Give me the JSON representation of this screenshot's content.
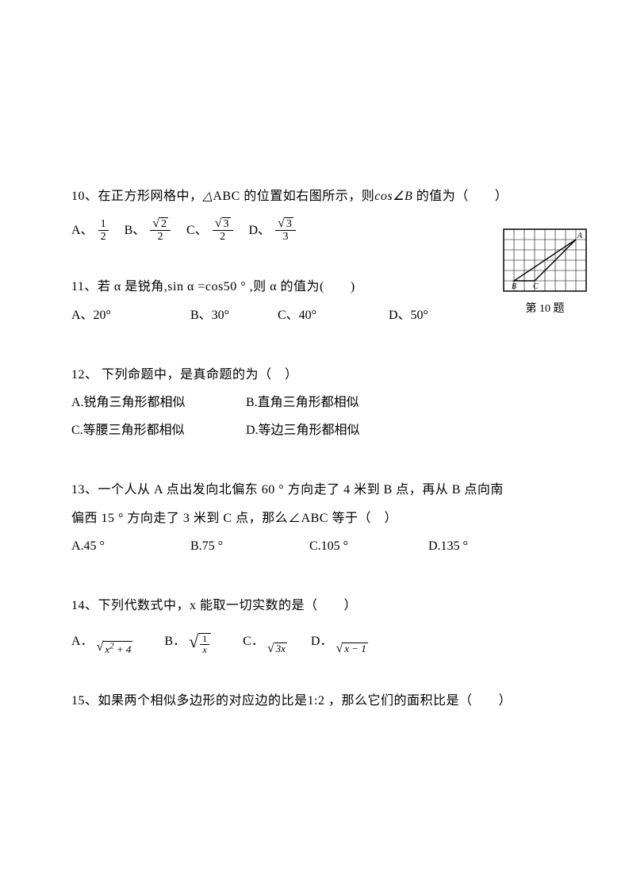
{
  "q10": {
    "number": "10、",
    "text_before": "在正方形网格中，",
    "triangle": "△ABC",
    "text_mid": " 的位置如右图所示，则",
    "cos": "cos∠B",
    "text_after": " 的值为（　　）",
    "opts": {
      "A": "A、",
      "B": "B、",
      "C": "C、",
      "D": "D、"
    },
    "fracs": {
      "A": {
        "num": "1",
        "den": "2"
      },
      "B": {
        "num_sqrt": "2",
        "den": "2"
      },
      "C": {
        "num_sqrt": "3",
        "den": "2"
      },
      "D": {
        "num_sqrt": "3",
        "den": "3"
      }
    },
    "figure_caption": "第 10 题"
  },
  "q11": {
    "number": "11、",
    "text": "若 α 是锐角,sin α =cos50 ° ,则 α 的值为(　　)",
    "A": "A、20°",
    "B": "B、30°",
    "C": "C、40°",
    "D": "D、50°"
  },
  "q12": {
    "number": "12、",
    "text": " 下列命题中，是真命题的为（　）",
    "A": "A.锐角三角形都相似",
    "B": "B.直角三角形都相似",
    "C": "C.等腰三角形都相似",
    "D": "D.等边三角形都相似"
  },
  "q13": {
    "number": "13、",
    "line1": "一个人从 A 点出发向北偏东 60 ° 方向走了 4 米到 B 点，再从 B 点向南",
    "line2": "偏西 15 ° 方向走了 3 米到 C 点，那么∠ABC 等于（　）",
    "A": "A.45 °",
    "B": "B.75 °",
    "C": "C.105 °",
    "D": "D.135 °"
  },
  "q14": {
    "number": "14、",
    "text": "下列代数式中，x 能取一切实数的是（　　）",
    "A": "A．",
    "B": "B．",
    "C": "C．",
    "D": "D．",
    "exprA": "x² + 4",
    "exprB_num": "1",
    "exprB_den": "x",
    "exprC": "3x",
    "exprD": "x − 1"
  },
  "q15": {
    "number": "15、",
    "text_before": "如果两个相似多边形的对应边的比是",
    "ratio": "1:2",
    "text_after": " ，那么它们的面积比是（　　）"
  },
  "grid": {
    "cols": 8,
    "rows": 6,
    "cell": 13,
    "B": {
      "col": 1,
      "row": 5,
      "label": "B"
    },
    "C": {
      "col": 3,
      "row": 5,
      "label": "C"
    },
    "A": {
      "col": 7,
      "row": 1,
      "label": "A"
    }
  },
  "colors": {
    "text": "#000000",
    "bg": "#ffffff",
    "grid": "#000000"
  }
}
